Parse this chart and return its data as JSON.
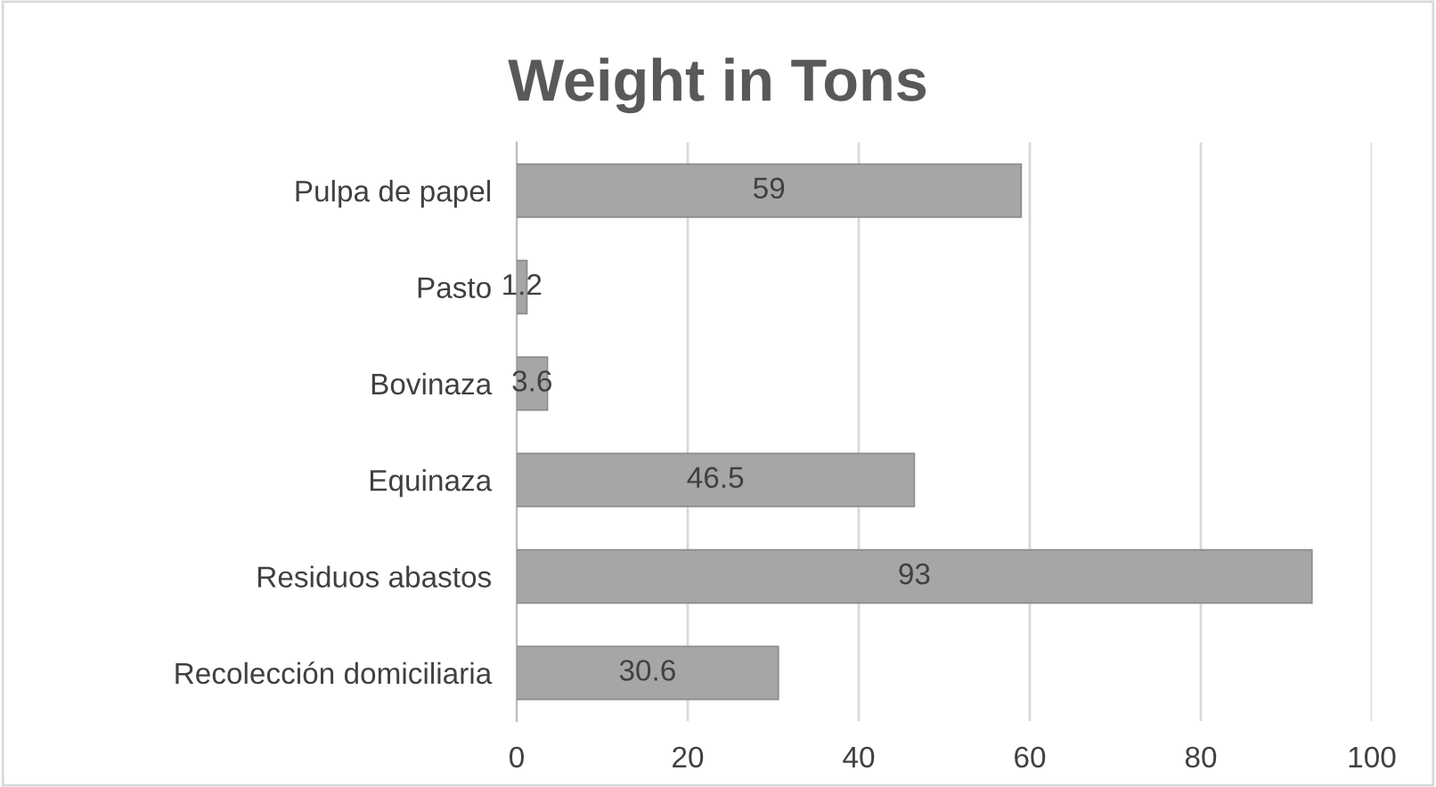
{
  "chart_data": {
    "type": "bar",
    "orientation": "horizontal",
    "title": "Weight in Tons",
    "categories": [
      "Pulpa de papel",
      "Pasto",
      "Bovinaza",
      "Equinaza",
      "Residuos abastos",
      "Recolección domiciliaria"
    ],
    "values": [
      59,
      1.2,
      3.6,
      46.5,
      93,
      30.6
    ],
    "color": "#a6a6a6",
    "xlim": [
      0,
      100
    ],
    "xticks": [
      0,
      20,
      40,
      60,
      80,
      100
    ],
    "grid": "x",
    "data_labels": true
  }
}
